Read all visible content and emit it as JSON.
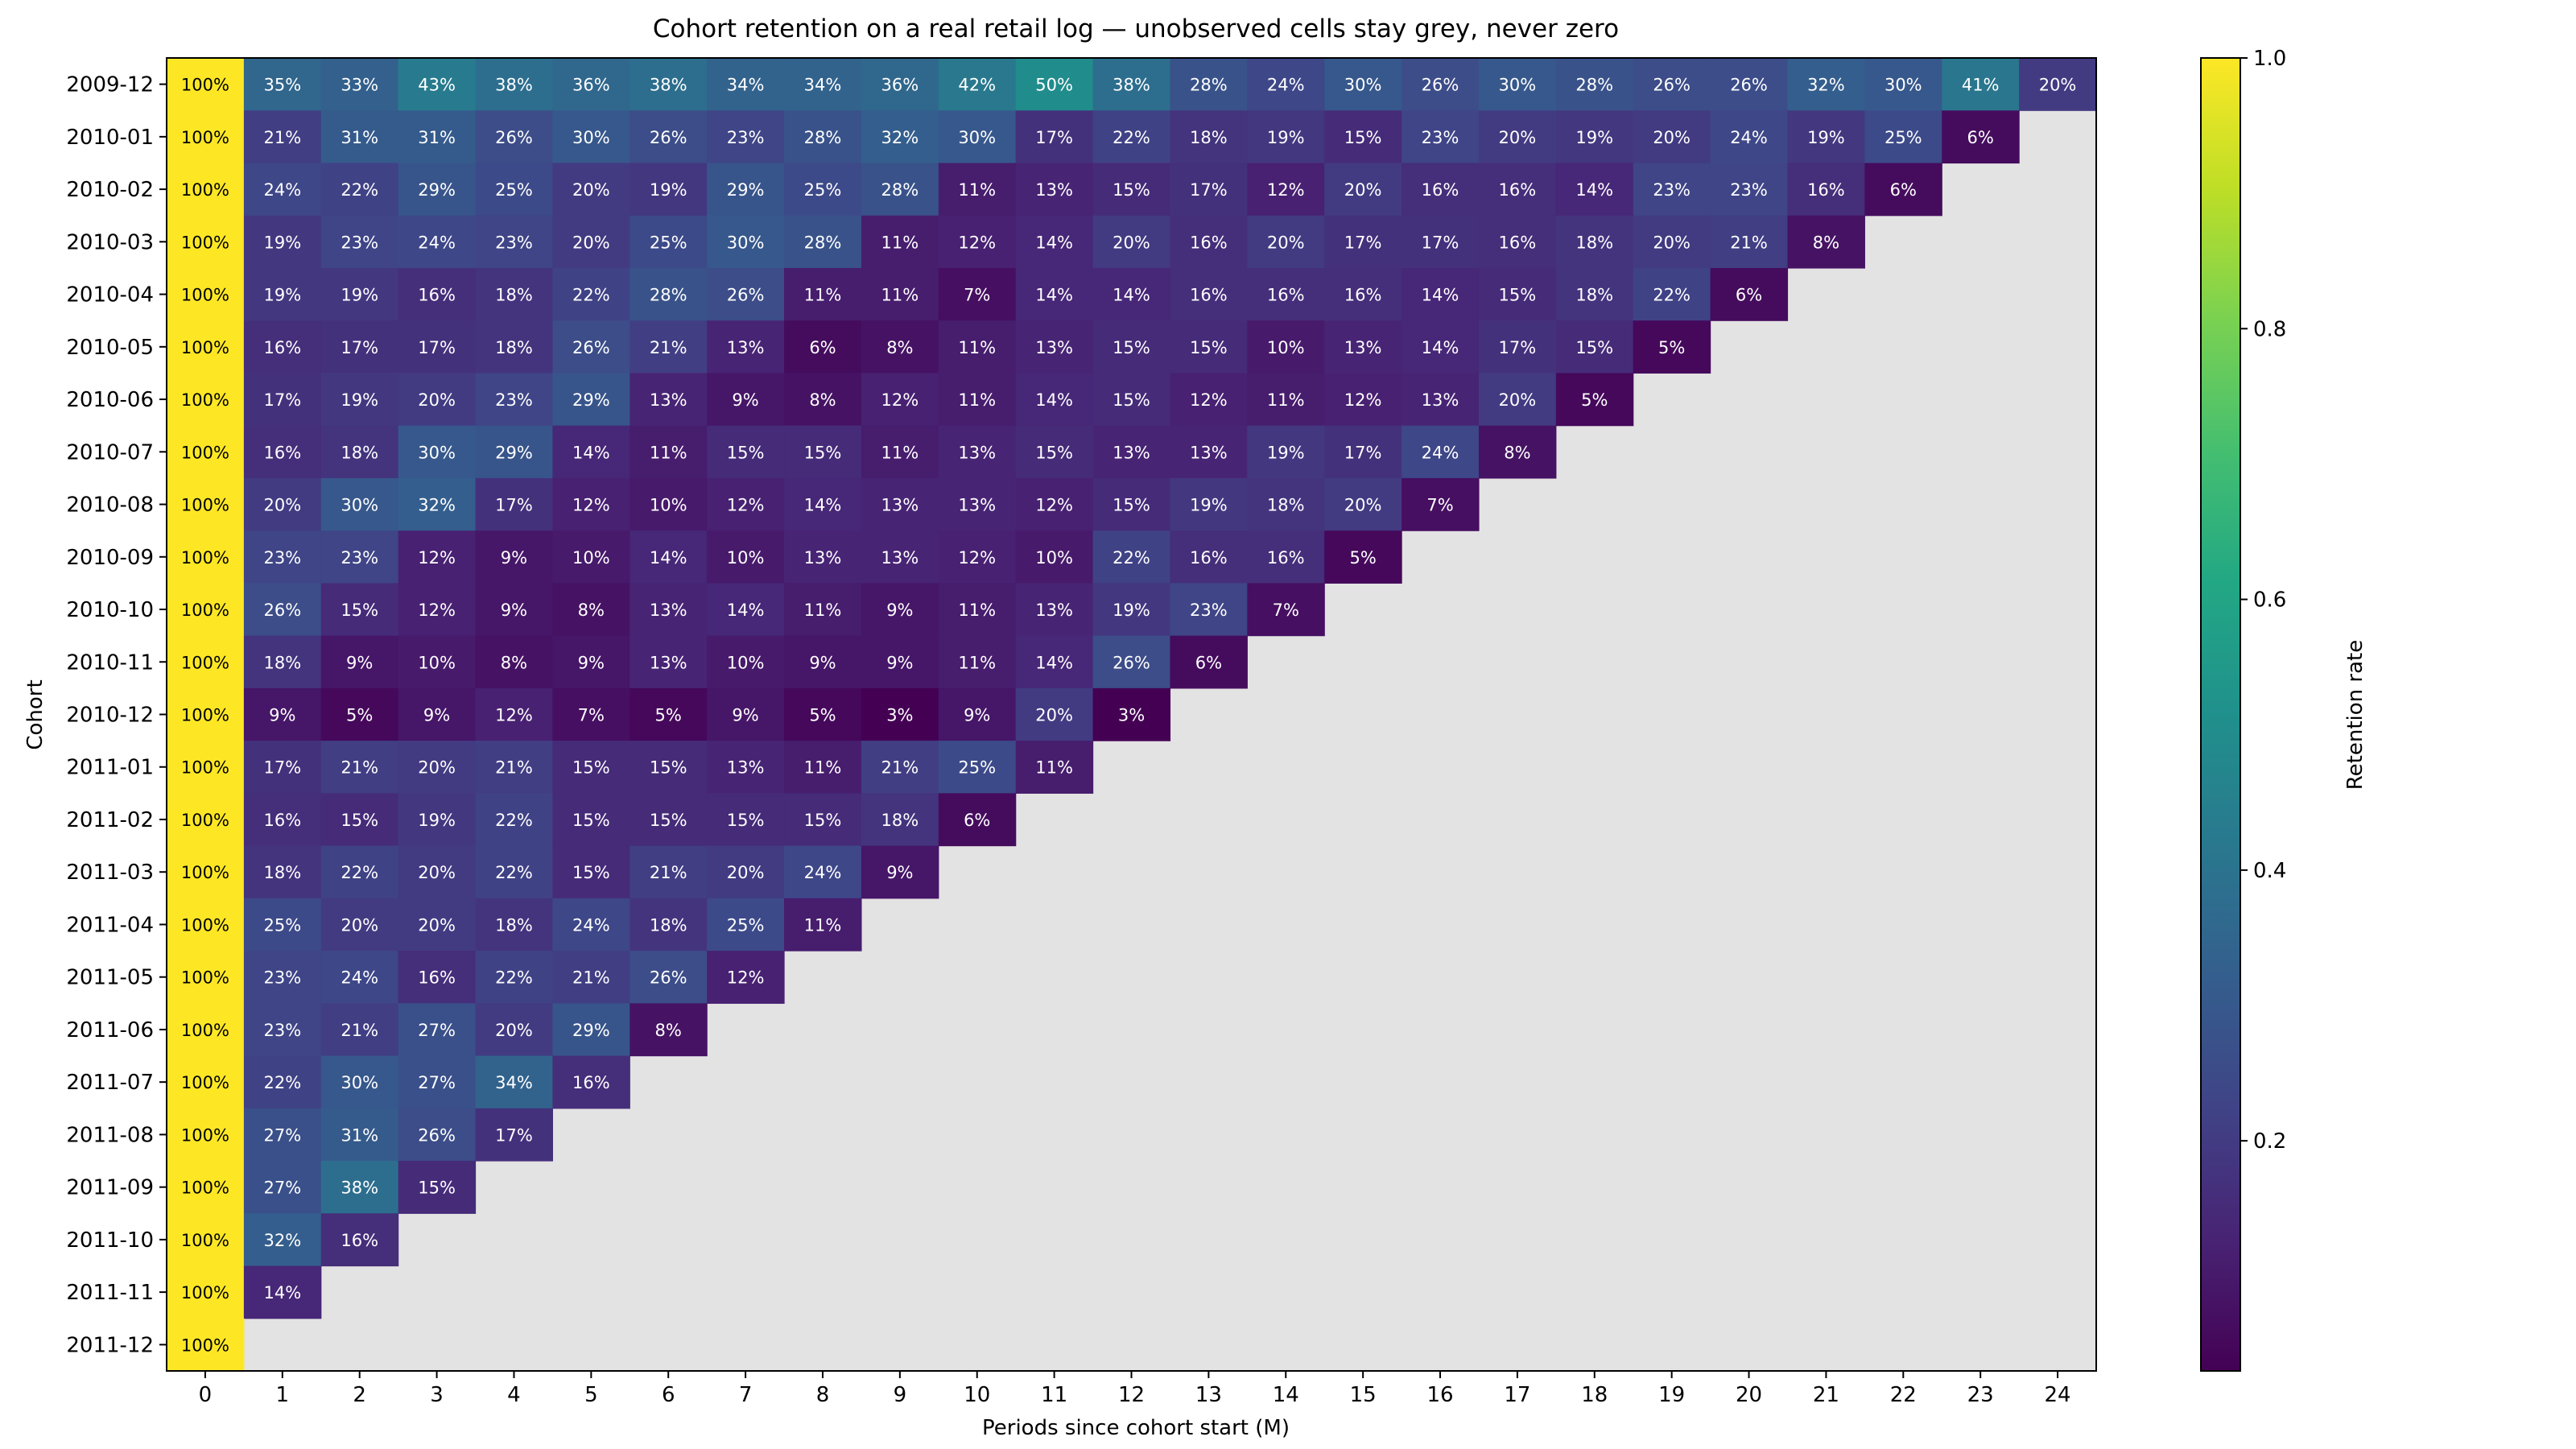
{
  "chart_data": {
    "type": "heatmap",
    "title": "Cohort retention on a real retail log — unobserved cells stay grey, never zero",
    "xlabel": "Periods since cohort start (M)",
    "ylabel": "Cohort",
    "x": [
      0,
      1,
      2,
      3,
      4,
      5,
      6,
      7,
      8,
      9,
      10,
      11,
      12,
      13,
      14,
      15,
      16,
      17,
      18,
      19,
      20,
      21,
      22,
      23,
      24
    ],
    "cohorts": [
      "2009-12",
      "2010-01",
      "2010-02",
      "2010-03",
      "2010-04",
      "2010-05",
      "2010-06",
      "2010-07",
      "2010-08",
      "2010-09",
      "2010-10",
      "2010-11",
      "2010-12",
      "2011-01",
      "2011-02",
      "2011-03",
      "2011-04",
      "2011-05",
      "2011-06",
      "2011-07",
      "2011-08",
      "2011-09",
      "2011-10",
      "2011-11",
      "2011-12"
    ],
    "values": [
      [
        100,
        35,
        33,
        43,
        38,
        36,
        38,
        34,
        34,
        36,
        42,
        50,
        38,
        28,
        24,
        30,
        26,
        30,
        28,
        26,
        26,
        32,
        30,
        41,
        20
      ],
      [
        100,
        21,
        31,
        31,
        26,
        30,
        26,
        23,
        28,
        32,
        30,
        17,
        22,
        18,
        19,
        15,
        23,
        20,
        19,
        20,
        24,
        19,
        25,
        6
      ],
      [
        100,
        24,
        22,
        29,
        25,
        20,
        19,
        29,
        25,
        28,
        11,
        13,
        15,
        17,
        12,
        20,
        16,
        16,
        14,
        23,
        23,
        16,
        6
      ],
      [
        100,
        19,
        23,
        24,
        23,
        20,
        25,
        30,
        28,
        11,
        12,
        14,
        20,
        16,
        20,
        17,
        17,
        16,
        18,
        20,
        21,
        8
      ],
      [
        100,
        19,
        19,
        16,
        18,
        22,
        28,
        26,
        11,
        11,
        7,
        14,
        14,
        16,
        16,
        16,
        14,
        15,
        18,
        22,
        6
      ],
      [
        100,
        16,
        17,
        17,
        18,
        26,
        21,
        13,
        6,
        8,
        11,
        13,
        15,
        15,
        10,
        13,
        14,
        17,
        15,
        5
      ],
      [
        100,
        17,
        19,
        20,
        23,
        29,
        13,
        9,
        8,
        12,
        11,
        14,
        15,
        12,
        11,
        12,
        13,
        20,
        5
      ],
      [
        100,
        16,
        18,
        30,
        29,
        14,
        11,
        15,
        15,
        11,
        13,
        15,
        13,
        13,
        19,
        17,
        24,
        8
      ],
      [
        100,
        20,
        30,
        32,
        17,
        12,
        10,
        12,
        14,
        13,
        13,
        12,
        15,
        19,
        18,
        20,
        7
      ],
      [
        100,
        23,
        23,
        12,
        9,
        10,
        14,
        10,
        13,
        13,
        12,
        10,
        22,
        16,
        16,
        5
      ],
      [
        100,
        26,
        15,
        12,
        9,
        8,
        13,
        14,
        11,
        9,
        11,
        13,
        19,
        23,
        7
      ],
      [
        100,
        18,
        9,
        10,
        8,
        9,
        13,
        10,
        9,
        9,
        11,
        14,
        26,
        6
      ],
      [
        100,
        9,
        5,
        9,
        12,
        7,
        5,
        9,
        5,
        3,
        9,
        20,
        3
      ],
      [
        100,
        17,
        21,
        20,
        21,
        15,
        15,
        13,
        11,
        21,
        25,
        11
      ],
      [
        100,
        16,
        15,
        19,
        22,
        15,
        15,
        15,
        15,
        18,
        6
      ],
      [
        100,
        18,
        22,
        20,
        22,
        15,
        21,
        20,
        24,
        9
      ],
      [
        100,
        25,
        20,
        20,
        18,
        24,
        18,
        25,
        11
      ],
      [
        100,
        23,
        24,
        16,
        22,
        21,
        26,
        12
      ],
      [
        100,
        23,
        21,
        27,
        20,
        29,
        8
      ],
      [
        100,
        22,
        30,
        27,
        34,
        16
      ],
      [
        100,
        27,
        31,
        26,
        17
      ],
      [
        100,
        27,
        38,
        15
      ],
      [
        100,
        32,
        16
      ],
      [
        100,
        14
      ],
      [
        100
      ]
    ],
    "value_format": "percent",
    "missing_color": "#e3e3e3",
    "colormap": "viridis",
    "colorbar": {
      "label": "Retention rate",
      "range": [
        0.03,
        1.0
      ],
      "ticks": [
        0.2,
        0.4,
        0.6,
        0.8,
        1.0
      ],
      "tick_labels": [
        "0.2",
        "0.4",
        "0.6",
        "0.8",
        "1.0"
      ]
    },
    "grid": false,
    "legend": "none"
  }
}
